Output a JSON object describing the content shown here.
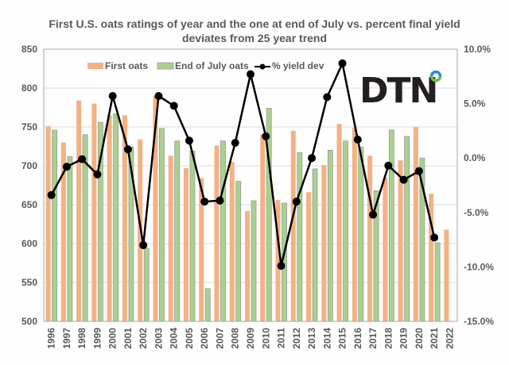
{
  "chart_data": {
    "type": "bar",
    "title": "First U.S. oats ratings of year and the one at end of July vs. percent final yield deviates from 25 year trend",
    "title_lines": [
      "First U.S. oats ratings of year and the one at end of July vs. percent final yield",
      "deviates from 25 year trend"
    ],
    "categories": [
      "1996",
      "1997",
      "1998",
      "1999",
      "2000",
      "2001",
      "2002",
      "2003",
      "2004",
      "2005",
      "2006",
      "2007",
      "2008",
      "2009",
      "2010",
      "2011",
      "2012",
      "2013",
      "2014",
      "2015",
      "2016",
      "2017",
      "2018",
      "2019",
      "2020",
      "2021",
      "2022"
    ],
    "series": [
      {
        "name": "First oats",
        "type": "bar",
        "axis": "left",
        "color": "#f4b183",
        "values": [
          751,
          730,
          784,
          780,
          765,
          765,
          734,
          790,
          713,
          697,
          684,
          726,
          705,
          642,
          740,
          656,
          745,
          666,
          701,
          754,
          749,
          713,
          685,
          707,
          750,
          664,
          618
        ]
      },
      {
        "name": "End of July oats",
        "type": "bar",
        "axis": "left",
        "color": "#a9d18e",
        "values": [
          746,
          712,
          740,
          756,
          767,
          724,
          594,
          748,
          732,
          719,
          542,
          732,
          680,
          655,
          774,
          652,
          717,
          696,
          720,
          732,
          724,
          668,
          746,
          738,
          710,
          601,
          null
        ]
      },
      {
        "name": "% yield dev",
        "type": "line",
        "axis": "right",
        "color": "#000000",
        "values": [
          -3.4,
          -0.8,
          -0.1,
          -1.5,
          5.7,
          0.8,
          -8.0,
          5.7,
          4.8,
          1.6,
          -4.0,
          -3.9,
          1.4,
          7.7,
          2.0,
          -9.9,
          -4.0,
          0.0,
          5.6,
          8.7,
          1.7,
          -5.2,
          -0.7,
          -2.0,
          -1.2,
          -7.3,
          null
        ]
      }
    ],
    "left_axis": {
      "ylim": [
        500,
        850
      ],
      "ticks": [
        "500",
        "550",
        "600",
        "650",
        "700",
        "750",
        "800",
        "850"
      ]
    },
    "right_axis": {
      "ylim": [
        -15,
        10
      ],
      "ticks": [
        "-15.0%",
        "-10.0%",
        "-5.0%",
        "0.0%",
        "5.0%",
        "10.0%"
      ]
    },
    "grid": true,
    "legend_position": "top",
    "xlabel": "",
    "ylabel": ""
  },
  "logo": {
    "text": "DTN",
    "ring_colors": [
      "#1e8fd6",
      "#7ab648"
    ]
  }
}
